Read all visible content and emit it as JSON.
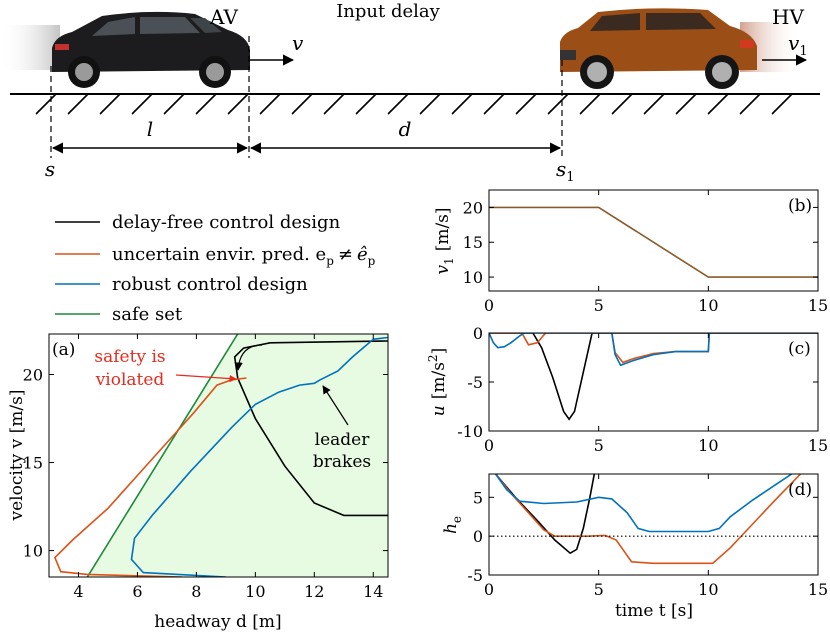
{
  "colors": {
    "black": "#000000",
    "orange": "#d95319",
    "blue": "#0072bd",
    "green": "#1a8a3a",
    "safe_fill": "#e7fbe2",
    "hv_line": "#8a5a2b",
    "red_text": "#e8291c"
  },
  "schematic": {
    "title": "Input delay",
    "av_label": "AV",
    "hv_label": "HV",
    "v_label": "v",
    "v1_label": "v",
    "v1_sub": "1",
    "l_label": "l",
    "d_label": "d",
    "s_label": "s",
    "s1_label": "s",
    "s1_sub": "1",
    "av_icon": "black-hatchback-car-icon",
    "hv_icon": "orange-suv-car-icon"
  },
  "legend": {
    "items": [
      {
        "label": "delay-free control design",
        "color": "#000000"
      },
      {
        "label": "uncertain envir. pred. e",
        "color": "#d95319"
      },
      {
        "label": "robust control design",
        "color": "#0072bd"
      },
      {
        "label": "safe set",
        "color": "#1a8a3a"
      }
    ],
    "pred_rest": "e",
    "pred_sub": "p",
    "pred_neq": "≠",
    "pred_hat": "ê"
  },
  "chart_data": [
    {
      "id": "a",
      "type": "line",
      "panel_label": "(a)",
      "xlabel": "headway d [m]",
      "ylabel": "velocity v [m/s]",
      "xlim": [
        3,
        14.5
      ],
      "ylim": [
        8.5,
        22.3
      ],
      "xticks": [
        4,
        6,
        8,
        10,
        12,
        14
      ],
      "yticks": [
        10,
        15,
        20
      ],
      "annotations": {
        "safety": [
          "safety is",
          "violated"
        ],
        "leader": [
          "leader",
          "brakes"
        ]
      },
      "safe_set_boundary": [
        [
          4.3,
          8.5
        ],
        [
          9.4,
          22.3
        ]
      ],
      "series": [
        {
          "name": "delay-free control design",
          "color": "#000000",
          "points": [
            [
              14.5,
              12.0
            ],
            [
              13.0,
              12.0
            ],
            [
              12.0,
              12.7
            ],
            [
              11.0,
              14.8
            ],
            [
              10.0,
              17.5
            ],
            [
              9.4,
              19.8
            ],
            [
              9.3,
              21.0
            ],
            [
              9.6,
              21.5
            ],
            [
              10.5,
              21.8
            ],
            [
              14.5,
              21.9
            ]
          ]
        },
        {
          "name": "uncertain envir. pred.",
          "color": "#d95319",
          "points": [
            [
              9.7,
              19.8
            ],
            [
              9.2,
              19.7
            ],
            [
              8.7,
              19.4
            ],
            [
              7.9,
              17.8
            ],
            [
              6.5,
              15.2
            ],
            [
              5.0,
              12.4
            ],
            [
              3.8,
              10.6
            ],
            [
              3.2,
              9.6
            ],
            [
              3.4,
              8.8
            ],
            [
              4.3,
              8.65
            ],
            [
              7.5,
              8.5
            ]
          ]
        },
        {
          "name": "robust control design",
          "color": "#0072bd",
          "points": [
            [
              14.5,
              22.1
            ],
            [
              14.0,
              22.0
            ],
            [
              13.3,
              21.0
            ],
            [
              12.8,
              20.2
            ],
            [
              12.2,
              19.7
            ],
            [
              12.0,
              19.5
            ],
            [
              11.5,
              19.4
            ],
            [
              10.8,
              19.0
            ],
            [
              10.0,
              18.3
            ],
            [
              9.2,
              17.0
            ],
            [
              7.8,
              14.5
            ],
            [
              6.5,
              12.0
            ],
            [
              5.9,
              10.7
            ],
            [
              5.8,
              9.5
            ],
            [
              6.2,
              8.75
            ],
            [
              9.0,
              8.5
            ]
          ]
        }
      ]
    },
    {
      "id": "b",
      "type": "line",
      "panel_label": "(b)",
      "xlabel": "",
      "ylabel": "v1 [m/s]",
      "ylabel_text": "v",
      "ylabel_sub": "1",
      "ylabel_unit": "[m/s]",
      "xlim": [
        0,
        15
      ],
      "ylim": [
        8,
        22.5
      ],
      "xticks": [
        0,
        5,
        10,
        15
      ],
      "yticks": [
        10,
        15,
        20
      ],
      "series": [
        {
          "name": "",
          "color": "#8a5a2b",
          "points": [
            [
              0,
              20
            ],
            [
              5,
              20
            ],
            [
              10,
              10
            ],
            [
              15,
              10
            ]
          ]
        }
      ]
    },
    {
      "id": "c",
      "type": "line",
      "panel_label": "(c)",
      "xlabel": "",
      "ylabel": "u [m/s²]",
      "ylabel_text": "u",
      "ylabel_unit": "[m/s",
      "ylabel_sup": "2",
      "xlim": [
        0,
        15
      ],
      "ylim": [
        -10,
        0
      ],
      "xticks": [
        0,
        5,
        10,
        15
      ],
      "yticks": [
        0,
        -5,
        -10
      ],
      "series": [
        {
          "name": "delay-free control design",
          "color": "#000000",
          "points": [
            [
              0,
              0
            ],
            [
              2.0,
              0
            ],
            [
              2.4,
              -1.5
            ],
            [
              2.9,
              -4.5
            ],
            [
              3.4,
              -8.0
            ],
            [
              3.65,
              -8.8
            ],
            [
              3.9,
              -8.0
            ],
            [
              4.2,
              -5.0
            ],
            [
              4.5,
              -2.0
            ],
            [
              4.7,
              0
            ],
            [
              15,
              0
            ]
          ]
        },
        {
          "name": "uncertain envir. pred.",
          "color": "#d95319",
          "points": [
            [
              0,
              0
            ],
            [
              1.5,
              0
            ],
            [
              1.7,
              -0.8
            ],
            [
              1.8,
              -1.2
            ],
            [
              2.2,
              -1.0
            ],
            [
              2.5,
              -0.2
            ],
            [
              2.6,
              0
            ],
            [
              5.6,
              0
            ],
            [
              5.75,
              -2.0
            ],
            [
              6.1,
              -3.0
            ],
            [
              6.6,
              -2.6
            ],
            [
              7.5,
              -2.1
            ],
            [
              8.5,
              -1.9
            ],
            [
              10.0,
              -1.9
            ],
            [
              10.05,
              0
            ],
            [
              15,
              0
            ]
          ]
        },
        {
          "name": "robust control design",
          "color": "#0072bd",
          "points": [
            [
              0,
              0
            ],
            [
              0.2,
              -1.0
            ],
            [
              0.4,
              -1.5
            ],
            [
              0.7,
              -1.4
            ],
            [
              1.0,
              -1.0
            ],
            [
              1.4,
              -0.3
            ],
            [
              1.6,
              0
            ],
            [
              5.6,
              0
            ],
            [
              5.75,
              -2.2
            ],
            [
              6.0,
              -3.3
            ],
            [
              6.6,
              -2.8
            ],
            [
              7.5,
              -2.2
            ],
            [
              8.5,
              -1.9
            ],
            [
              10.0,
              -1.9
            ],
            [
              10.05,
              0
            ],
            [
              15,
              0
            ]
          ]
        }
      ]
    },
    {
      "id": "d",
      "type": "line",
      "panel_label": "(d)",
      "xlabel": "time t [s]",
      "ylabel": "he",
      "ylabel_text": "h",
      "ylabel_sub": "e",
      "xlim": [
        0,
        15
      ],
      "ylim": [
        -5,
        8
      ],
      "xticks": [
        0,
        5,
        10,
        15
      ],
      "yticks": [
        5,
        0,
        -5
      ],
      "series": [
        {
          "name": "delay-free control design",
          "color": "#000000",
          "points": [
            [
              0.3,
              8
            ],
            [
              1.2,
              5.0
            ],
            [
              2.2,
              2.0
            ],
            [
              3.0,
              -0.5
            ],
            [
              3.7,
              -2.2
            ],
            [
              4.0,
              -1.7
            ],
            [
              4.3,
              1.0
            ],
            [
              4.6,
              5.0
            ],
            [
              4.8,
              8
            ]
          ]
        },
        {
          "name": "uncertain envir. pred.",
          "color": "#d95319",
          "points": [
            [
              0.3,
              8
            ],
            [
              1.0,
              5.5
            ],
            [
              1.8,
              3.0
            ],
            [
              2.5,
              0.8
            ],
            [
              3.0,
              0
            ],
            [
              4.5,
              0
            ],
            [
              5.3,
              0.1
            ],
            [
              5.8,
              -0.5
            ],
            [
              6.5,
              -3.3
            ],
            [
              7.5,
              -3.5
            ],
            [
              10.2,
              -3.5
            ],
            [
              11.0,
              -1.5
            ],
            [
              12.0,
              1.5
            ],
            [
              13.0,
              4.5
            ],
            [
              14.2,
              8
            ]
          ]
        },
        {
          "name": "robust control design",
          "color": "#0072bd",
          "points": [
            [
              0.3,
              8
            ],
            [
              0.8,
              6.0
            ],
            [
              1.4,
              4.5
            ],
            [
              2.5,
              4.2
            ],
            [
              4.0,
              4.4
            ],
            [
              5.0,
              5.0
            ],
            [
              5.6,
              4.8
            ],
            [
              6.3,
              3.0
            ],
            [
              6.8,
              1.0
            ],
            [
              7.3,
              0.6
            ],
            [
              10.0,
              0.6
            ],
            [
              10.5,
              1.0
            ],
            [
              11.0,
              2.5
            ],
            [
              12.0,
              4.6
            ],
            [
              13.0,
              6.5
            ],
            [
              13.8,
              8
            ]
          ]
        },
        {
          "name": "zero line",
          "color": "#000000",
          "dotted": true,
          "points": [
            [
              0,
              0
            ],
            [
              15,
              0
            ]
          ]
        }
      ]
    }
  ]
}
